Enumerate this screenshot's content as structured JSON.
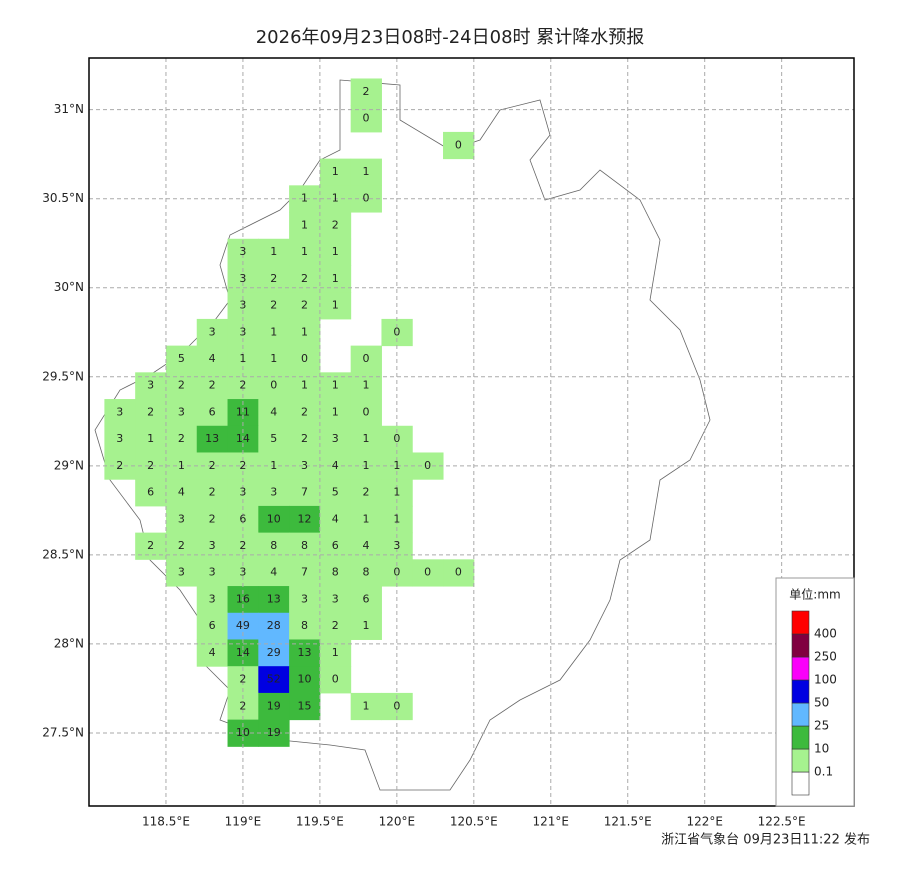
{
  "map": {
    "title": "2026年09月23日08时-24日08时 累计降水预报",
    "footer": "浙江省气象台 09月23日11:22 发布",
    "xlim": [
      118.0,
      122.97
    ],
    "ylim": [
      27.09,
      31.29
    ],
    "xticks": [
      {
        "value": 118.5,
        "label": "118.5°E"
      },
      {
        "value": 119,
        "label": "119°E"
      },
      {
        "value": 119.5,
        "label": "119.5°E"
      },
      {
        "value": 120,
        "label": "120°E"
      },
      {
        "value": 120.5,
        "label": "120.5°E"
      },
      {
        "value": 121,
        "label": "121°E"
      },
      {
        "value": 121.5,
        "label": "121.5°E"
      },
      {
        "value": 122,
        "label": "122°E"
      },
      {
        "value": 122.5,
        "label": "122.5°E"
      }
    ],
    "yticks": [
      {
        "value": 27.5,
        "label": "27.5°N"
      },
      {
        "value": 28,
        "label": "28°N"
      },
      {
        "value": 28.5,
        "label": "28.5°N"
      },
      {
        "value": 29,
        "label": "29°N"
      },
      {
        "value": 29.5,
        "label": "29.5°N"
      },
      {
        "value": 30,
        "label": "30°N"
      },
      {
        "value": 30.5,
        "label": "30.5°N"
      },
      {
        "value": 31,
        "label": "31°N"
      }
    ],
    "legend": {
      "title": "单位:mm",
      "levels": [
        0.1,
        10,
        25,
        50,
        100,
        250,
        400
      ],
      "colors": [
        "#ffffff",
        "#a6f28f",
        "#3dba3d",
        "#61b8ff",
        "#0000e1",
        "#fa00fa",
        "#800040",
        "#ff0000"
      ]
    },
    "grid": {
      "lons": [
        118.2,
        118.4,
        118.6,
        118.8,
        119.0,
        119.2,
        119.4,
        119.6,
        119.8,
        120.0,
        120.2,
        120.4
      ],
      "lats": [
        31.1,
        30.95,
        30.8,
        30.65,
        30.5,
        30.35,
        30.2,
        30.05,
        29.9,
        29.75,
        29.6,
        29.45,
        29.3,
        29.15,
        29.0,
        28.85,
        28.7,
        28.55,
        28.4,
        28.25,
        28.1,
        27.95,
        27.8,
        27.65,
        27.5
      ],
      "values": [
        [
          null,
          null,
          null,
          null,
          null,
          null,
          null,
          null,
          2,
          null,
          null,
          null
        ],
        [
          null,
          null,
          null,
          null,
          null,
          null,
          null,
          null,
          0,
          null,
          null,
          null
        ],
        [
          null,
          null,
          null,
          null,
          null,
          null,
          null,
          null,
          null,
          null,
          null,
          0
        ],
        [
          null,
          null,
          null,
          null,
          null,
          null,
          null,
          1,
          1,
          null,
          null,
          null
        ],
        [
          null,
          null,
          null,
          null,
          null,
          null,
          1,
          1,
          0,
          null,
          null,
          null
        ],
        [
          null,
          null,
          null,
          null,
          null,
          null,
          1,
          2,
          null,
          null,
          null,
          null
        ],
        [
          null,
          null,
          null,
          null,
          3,
          1,
          1,
          1,
          null,
          null,
          null,
          null
        ],
        [
          null,
          null,
          null,
          null,
          3,
          2,
          2,
          1,
          null,
          null,
          null,
          null
        ],
        [
          null,
          null,
          null,
          null,
          3,
          2,
          2,
          1,
          null,
          null,
          null,
          null
        ],
        [
          null,
          null,
          null,
          3,
          3,
          1,
          1,
          null,
          null,
          0,
          null,
          null
        ],
        [
          null,
          null,
          5,
          4,
          1,
          1,
          0,
          null,
          0,
          null,
          null,
          null
        ],
        [
          null,
          3,
          2,
          2,
          2,
          0,
          1,
          1,
          1,
          null,
          null,
          null
        ],
        [
          3,
          2,
          3,
          6,
          11,
          4,
          2,
          1,
          0,
          null,
          null,
          null
        ],
        [
          3,
          1,
          2,
          13,
          14,
          5,
          2,
          3,
          1,
          0,
          null,
          null
        ],
        [
          2,
          2,
          1,
          2,
          2,
          1,
          3,
          4,
          1,
          1,
          0,
          null
        ],
        [
          null,
          6,
          4,
          2,
          3,
          3,
          7,
          5,
          2,
          1,
          null,
          null
        ],
        [
          null,
          null,
          3,
          2,
          6,
          10,
          12,
          4,
          1,
          1,
          null,
          null
        ],
        [
          null,
          2,
          2,
          3,
          2,
          8,
          8,
          6,
          4,
          3,
          null,
          null
        ],
        [
          null,
          null,
          3,
          3,
          3,
          4,
          7,
          8,
          8,
          0,
          0,
          0
        ],
        [
          null,
          null,
          null,
          3,
          16,
          13,
          3,
          3,
          6,
          null,
          null,
          null
        ],
        [
          null,
          null,
          null,
          6,
          49,
          28,
          8,
          2,
          1,
          null,
          null,
          null
        ],
        [
          null,
          null,
          null,
          4,
          14,
          29,
          13,
          1,
          null,
          null,
          null,
          null
        ],
        [
          null,
          null,
          null,
          null,
          2,
          52,
          10,
          0,
          null,
          null,
          null,
          null
        ],
        [
          null,
          null,
          null,
          null,
          2,
          19,
          15,
          null,
          1,
          0,
          null,
          null
        ],
        [
          null,
          null,
          null,
          null,
          10,
          19,
          null,
          null,
          null,
          null,
          null,
          null
        ]
      ]
    }
  }
}
